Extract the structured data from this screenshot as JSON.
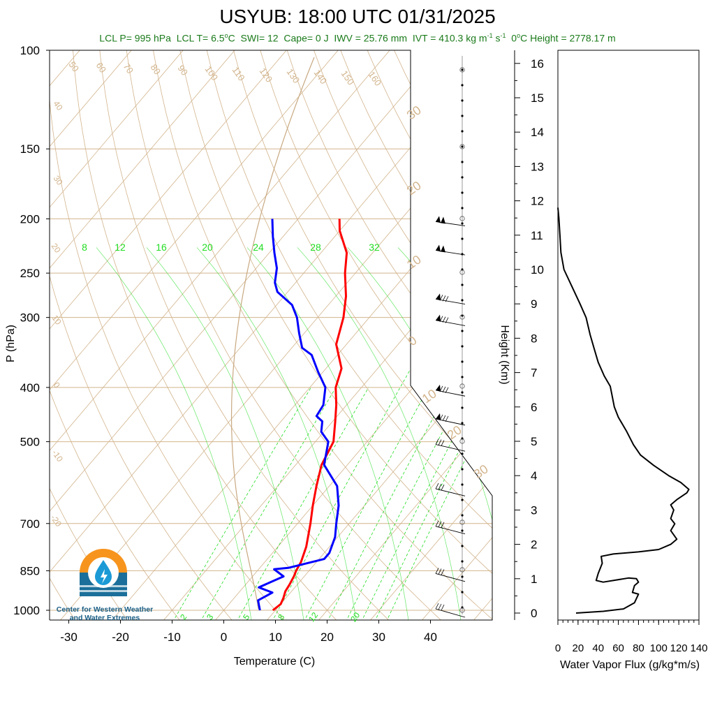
{
  "header": {
    "title": "USYUB: 18:00 UTC 01/31/2025",
    "stats": {
      "lcl_p": "LCL P= 995 hPa",
      "lcl_t_prefix": "LCL T= 6.5",
      "lcl_t_unit": "C",
      "swi": "SWI= 12",
      "cape": "Cape= 0 J",
      "iwv": "IWV = 25.76 mm",
      "ivt_prefix": "IVT = 410.3 kg m",
      "ivt_exp1": "-1",
      "ivt_mid": " s",
      "ivt_exp2": "-1",
      "zero_height": "C Height = 2778.17 m",
      "zero_height_prefix": "0"
    }
  },
  "logo": {
    "line1": "Center for Western Weather",
    "line2": "and Water Extremes"
  },
  "colors": {
    "temperature": "#ff0000",
    "dewpoint": "#0000ff",
    "mixing_ratio": "#22dd22",
    "adiabat": "#d2b48c",
    "stats_text": "#1a7a1a",
    "flux": "#000000"
  },
  "chart_data": [
    {
      "type": "line",
      "name": "skew-t",
      "xlabel": "Temperature (C)",
      "ylabel": "P (hPa)",
      "x_ticks": [
        -30,
        -20,
        -10,
        0,
        10,
        20,
        30,
        40
      ],
      "y_ticks": [
        100,
        150,
        200,
        250,
        300,
        400,
        500,
        700,
        850,
        1000
      ],
      "xlim": [
        -33,
        50
      ],
      "ylim": [
        1040,
        100
      ],
      "isotherm_labels": [
        50,
        60,
        70,
        80,
        90,
        100,
        110,
        120,
        130,
        140,
        150,
        160
      ],
      "dry_adiabat_labels_left": [
        40,
        30,
        20,
        10,
        0,
        -10,
        -20
      ],
      "moist_adiabat_labels_right": [
        30,
        20,
        10,
        0,
        -10,
        -20,
        -30
      ],
      "mixing_ratio_labels_top": [
        8,
        12,
        16,
        20,
        24,
        28,
        32
      ],
      "mixing_ratio_labels_bottom": [
        2,
        3,
        5,
        8,
        12,
        20
      ],
      "series": [
        {
          "name": "temperature",
          "points": [
            [
              9.5,
              1000
            ],
            [
              10.0,
              975
            ],
            [
              9.5,
              950
            ],
            [
              8.8,
              925
            ],
            [
              8.5,
              900
            ],
            [
              8.0,
              870
            ],
            [
              7.5,
              850
            ],
            [
              7.0,
              820
            ],
            [
              5.5,
              770
            ],
            [
              2.5,
              700
            ],
            [
              0,
              650
            ],
            [
              -2.5,
              600
            ],
            [
              -5,
              550
            ],
            [
              -6.5,
              500
            ],
            [
              -9.5,
              460
            ],
            [
              -12,
              430
            ],
            [
              -15,
              400
            ],
            [
              -17,
              370
            ],
            [
              -22,
              335
            ],
            [
              -25,
              300
            ],
            [
              -28,
              275
            ],
            [
              -32,
              250
            ],
            [
              -35,
              230
            ],
            [
              -40,
              210
            ],
            [
              -42,
              200
            ]
          ]
        },
        {
          "name": "dewpoint",
          "points": [
            [
              7.0,
              1000
            ],
            [
              6.0,
              980
            ],
            [
              5.0,
              960
            ],
            [
              6.5,
              930
            ],
            [
              3.0,
              910
            ],
            [
              4.5,
              890
            ],
            [
              6.0,
              870
            ],
            [
              3.0,
              845
            ],
            [
              5.5,
              840
            ],
            [
              11.0,
              810
            ],
            [
              11.0,
              790
            ],
            [
              9.5,
              740
            ],
            [
              7.5,
              700
            ],
            [
              5.0,
              650
            ],
            [
              1.5,
              600
            ],
            [
              -4.5,
              550
            ],
            [
              -7.5,
              500
            ],
            [
              -10.5,
              480
            ],
            [
              -12,
              460
            ],
            [
              -14,
              450
            ],
            [
              -14.5,
              430
            ],
            [
              -17,
              400
            ],
            [
              -21,
              375
            ],
            [
              -25,
              350
            ],
            [
              -28,
              340
            ],
            [
              -31,
              320
            ],
            [
              -34,
              300
            ],
            [
              -37,
              285
            ],
            [
              -42,
              270
            ],
            [
              -44,
              260
            ],
            [
              -46,
              245
            ],
            [
              -49,
              230
            ],
            [
              -52,
              215
            ],
            [
              -55,
              200
            ]
          ]
        }
      ],
      "wind_barb_pressures": [
        1000,
        850,
        700,
        600,
        500,
        450,
        400,
        300,
        275,
        225,
        200
      ]
    },
    {
      "type": "line",
      "name": "water-vapor-flux",
      "xlabel": "Water Vapor Flux (g/kg*m/s)",
      "ylabel": "Height (Km)",
      "x_ticks": [
        0,
        20,
        40,
        60,
        80,
        100,
        120,
        140
      ],
      "y_ticks": [
        0,
        1,
        2,
        3,
        4,
        5,
        6,
        7,
        8,
        9,
        10,
        11,
        12,
        13,
        14,
        15,
        16
      ],
      "xlim": [
        0,
        140
      ],
      "ylim": [
        -0.2,
        16.3
      ],
      "series": [
        {
          "name": "flux",
          "points": [
            [
              18,
              0
            ],
            [
              45,
              0.05
            ],
            [
              65,
              0.12
            ],
            [
              76,
              0.3
            ],
            [
              80,
              0.55
            ],
            [
              74,
              0.6
            ],
            [
              76,
              0.8
            ],
            [
              80,
              0.9
            ],
            [
              78,
              1.0
            ],
            [
              70,
              1.02
            ],
            [
              45,
              0.9
            ],
            [
              38,
              0.95
            ],
            [
              40,
              1.15
            ],
            [
              44,
              1.45
            ],
            [
              43,
              1.65
            ],
            [
              55,
              1.72
            ],
            [
              80,
              1.78
            ],
            [
              100,
              1.85
            ],
            [
              112,
              2.0
            ],
            [
              118,
              2.15
            ],
            [
              112,
              2.4
            ],
            [
              116,
              2.6
            ],
            [
              112,
              2.75
            ],
            [
              115,
              3.0
            ],
            [
              112,
              3.15
            ],
            [
              118,
              3.3
            ],
            [
              128,
              3.5
            ],
            [
              130,
              3.6
            ],
            [
              122,
              3.8
            ],
            [
              110,
              4.0
            ],
            [
              95,
              4.3
            ],
            [
              82,
              4.6
            ],
            [
              75,
              4.9
            ],
            [
              68,
              5.3
            ],
            [
              60,
              5.7
            ],
            [
              56,
              6.0
            ],
            [
              54,
              6.3
            ],
            [
              52,
              6.6
            ],
            [
              46,
              6.9
            ],
            [
              40,
              7.3
            ],
            [
              36,
              7.7
            ],
            [
              32,
              8.1
            ],
            [
              28,
              8.6
            ],
            [
              22,
              9.0
            ],
            [
              14,
              9.5
            ],
            [
              6,
              10.0
            ],
            [
              3,
              10.5
            ],
            [
              2,
              11.0
            ],
            [
              1,
              11.5
            ],
            [
              0,
              11.8
            ]
          ]
        }
      ]
    }
  ]
}
